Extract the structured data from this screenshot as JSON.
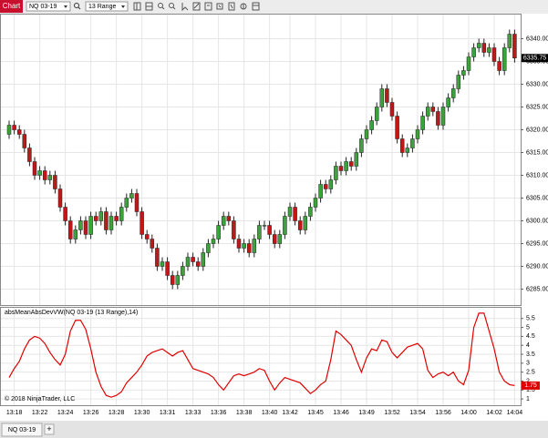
{
  "toolbar": {
    "tab": "Chart",
    "instrument": "NQ 03-19",
    "interval": "13 Range"
  },
  "chart_data": [
    {
      "type": "candlestick",
      "xticks": [
        {
          "value": 1,
          "label": "13:18"
        },
        {
          "value": 6,
          "label": "13:22"
        },
        {
          "value": 11,
          "label": "13:24"
        },
        {
          "value": 16,
          "label": "13:26"
        },
        {
          "value": 21,
          "label": "13:28"
        },
        {
          "value": 26,
          "label": "13:30"
        },
        {
          "value": 31,
          "label": "13:31"
        },
        {
          "value": 36,
          "label": "13:33"
        },
        {
          "value": 41,
          "label": "13:36"
        },
        {
          "value": 46,
          "label": "13:38"
        },
        {
          "value": 51,
          "label": "13:40"
        },
        {
          "value": 55,
          "label": "13:42"
        },
        {
          "value": 60,
          "label": "13:45"
        },
        {
          "value": 65,
          "label": "13:46"
        },
        {
          "value": 70,
          "label": "13:49"
        },
        {
          "value": 75,
          "label": "13:52"
        },
        {
          "value": 80,
          "label": "13:54"
        },
        {
          "value": 85,
          "label": "13:56"
        },
        {
          "value": 90,
          "label": "14:00"
        },
        {
          "value": 95,
          "label": "14:02"
        },
        {
          "value": 99,
          "label": "14:04"
        }
      ],
      "open": [
        6319,
        6321,
        6320,
        6319,
        6316,
        6313,
        6310,
        6311,
        6309,
        6310,
        6307,
        6303,
        6300,
        6296,
        6298,
        6300,
        6297,
        6301,
        6300,
        6302,
        6298,
        6301,
        6300,
        6303,
        6305,
        6306,
        6302,
        6297,
        6296,
        6294,
        6290,
        6291,
        6288,
        6286,
        6288,
        6290,
        6292,
        6291,
        6290,
        6293,
        6295,
        6296,
        6299,
        6301,
        6300,
        6296,
        6294,
        6295,
        6293,
        6296,
        6299,
        6299,
        6297,
        6295,
        6297,
        6301,
        6303,
        6300,
        6298,
        6301,
        6303,
        6305,
        6308,
        6307,
        6309,
        6312,
        6311,
        6313,
        6312,
        6315,
        6318,
        6320,
        6322,
        6325,
        6329,
        6326,
        6323,
        6318,
        6315,
        6316,
        6318,
        6320,
        6323,
        6325,
        6324,
        6321,
        6325,
        6327,
        6329,
        6332,
        6333,
        6336,
        6338,
        6339,
        6337,
        6338,
        6335,
        6333,
        6338,
        6341
      ],
      "high": [
        6322,
        6322,
        6321,
        6320,
        6317,
        6314,
        6312,
        6312,
        6311,
        6311,
        6308,
        6304,
        6301,
        6299,
        6301,
        6301,
        6302,
        6302,
        6303,
        6303,
        6302,
        6302,
        6304,
        6306,
        6307,
        6307,
        6303,
        6298,
        6297,
        6295,
        6292,
        6292,
        6289,
        6289,
        6291,
        6293,
        6293,
        6292,
        6294,
        6296,
        6297,
        6300,
        6302,
        6302,
        6301,
        6297,
        6296,
        6296,
        6297,
        6300,
        6300,
        6300,
        6298,
        6298,
        6302,
        6304,
        6304,
        6301,
        6302,
        6304,
        6306,
        6309,
        6309,
        6310,
        6313,
        6313,
        6314,
        6314,
        6316,
        6319,
        6321,
        6323,
        6326,
        6330,
        6330,
        6327,
        6324,
        6319,
        6317,
        6319,
        6321,
        6324,
        6326,
        6326,
        6325,
        6326,
        6328,
        6330,
        6333,
        6334,
        6337,
        6339,
        6340,
        6340,
        6339,
        6339,
        6336,
        6339,
        6342,
        6342
      ],
      "low": [
        6318,
        6319,
        6318,
        6315,
        6312,
        6309,
        6309,
        6308,
        6308,
        6306,
        6302,
        6299,
        6295,
        6295,
        6297,
        6296,
        6296,
        6299,
        6299,
        6297,
        6297,
        6299,
        6299,
        6302,
        6304,
        6301,
        6296,
        6295,
        6293,
        6289,
        6289,
        6287,
        6285,
        6285,
        6287,
        6289,
        6290,
        6289,
        6289,
        6292,
        6294,
        6295,
        6298,
        6299,
        6295,
        6293,
        6293,
        6292,
        6292,
        6295,
        6298,
        6296,
        6294,
        6294,
        6296,
        6300,
        6299,
        6297,
        6297,
        6300,
        6302,
        6304,
        6306,
        6306,
        6308,
        6310,
        6310,
        6311,
        6311,
        6314,
        6317,
        6319,
        6321,
        6324,
        6325,
        6322,
        6317,
        6314,
        6314,
        6315,
        6317,
        6319,
        6322,
        6323,
        6320,
        6320,
        6324,
        6326,
        6328,
        6331,
        6332,
        6335,
        6337,
        6336,
        6336,
        6334,
        6332,
        6332,
        6337,
        6334.75
      ],
      "close": [
        6321,
        6320,
        6319,
        6316,
        6313,
        6310,
        6311,
        6309,
        6310,
        6307,
        6303,
        6300,
        6296,
        6298,
        6300,
        6297,
        6301,
        6300,
        6302,
        6298,
        6301,
        6300,
        6303,
        6305,
        6306,
        6302,
        6297,
        6296,
        6294,
        6290,
        6291,
        6288,
        6286,
        6288,
        6290,
        6292,
        6291,
        6290,
        6293,
        6295,
        6296,
        6299,
        6301,
        6300,
        6296,
        6294,
        6295,
        6293,
        6296,
        6299,
        6299,
        6297,
        6295,
        6297,
        6301,
        6303,
        6300,
        6298,
        6301,
        6303,
        6305,
        6308,
        6307,
        6309,
        6312,
        6311,
        6313,
        6312,
        6315,
        6318,
        6320,
        6322,
        6325,
        6329,
        6326,
        6323,
        6318,
        6315,
        6316,
        6318,
        6320,
        6323,
        6325,
        6324,
        6321,
        6325,
        6327,
        6329,
        6332,
        6333,
        6336,
        6338,
        6339,
        6337,
        6338,
        6335,
        6333,
        6338,
        6341,
        6335.75
      ],
      "up_color": "#3aa33a",
      "down_color": "#c01818",
      "ylim": [
        6281.5,
        6345.5
      ],
      "yticks": [
        {
          "value": 6285,
          "label": "6285.00"
        },
        {
          "value": 6290,
          "label": "6290.00"
        },
        {
          "value": 6295,
          "label": "6295.00"
        },
        {
          "value": 6300,
          "label": "6300.00"
        },
        {
          "value": 6305,
          "label": "6305.00"
        },
        {
          "value": 6310,
          "label": "6310.00"
        },
        {
          "value": 6315,
          "label": "6315.00"
        },
        {
          "value": 6320,
          "label": "6320.00"
        },
        {
          "value": 6325,
          "label": "6325.00"
        },
        {
          "value": 6330,
          "label": "6330.00"
        },
        {
          "value": 6335,
          "label": "6335.00"
        },
        {
          "value": 6340,
          "label": "6340.00"
        }
      ],
      "last_price": 6335.75,
      "grid": true
    },
    {
      "type": "line",
      "title": "absMeanAbsDevVW(NQ 03-19 (13 Range),14)",
      "color": "#e00000",
      "values": [
        2.2,
        2.7,
        3.1,
        3.8,
        4.3,
        4.5,
        4.4,
        4.1,
        3.6,
        3.2,
        2.9,
        3.5,
        4.8,
        5.4,
        5.4,
        4.9,
        3.8,
        2.5,
        1.7,
        1.2,
        1.1,
        1.2,
        1.4,
        1.9,
        2.2,
        2.5,
        2.9,
        3.4,
        3.6,
        3.7,
        3.8,
        3.6,
        3.4,
        3.6,
        3.7,
        3.2,
        2.7,
        2.6,
        2.5,
        2.4,
        2.2,
        1.8,
        1.5,
        1.9,
        2.3,
        2.4,
        2.3,
        2.4,
        2.5,
        2.7,
        2.6,
        2.0,
        1.5,
        1.9,
        2.2,
        2.1,
        2.0,
        1.9,
        1.6,
        1.3,
        1.5,
        1.8,
        2.0,
        3.2,
        4.8,
        4.6,
        4.3,
        4.0,
        3.2,
        2.5,
        3.3,
        3.8,
        3.7,
        4.3,
        4.2,
        3.6,
        3.3,
        3.6,
        3.9,
        4.0,
        4.1,
        3.8,
        2.6,
        2.2,
        2.4,
        2.5,
        2.3,
        2.5,
        2.0,
        1.8,
        2.6,
        5.0,
        5.8,
        5.8,
        4.8,
        3.8,
        2.5,
        2.0,
        1.8,
        1.75
      ],
      "ylim": [
        0.65,
        6.15
      ],
      "yticks": [
        1,
        1.5,
        2,
        2.5,
        3,
        3.5,
        4,
        4.5,
        5,
        5.5
      ],
      "last_value": 1.75,
      "grid": true
    }
  ],
  "copyright": "© 2018 NinjaTrader, LLC",
  "tabs": [
    "NQ 03-19"
  ],
  "new_tab": "+"
}
